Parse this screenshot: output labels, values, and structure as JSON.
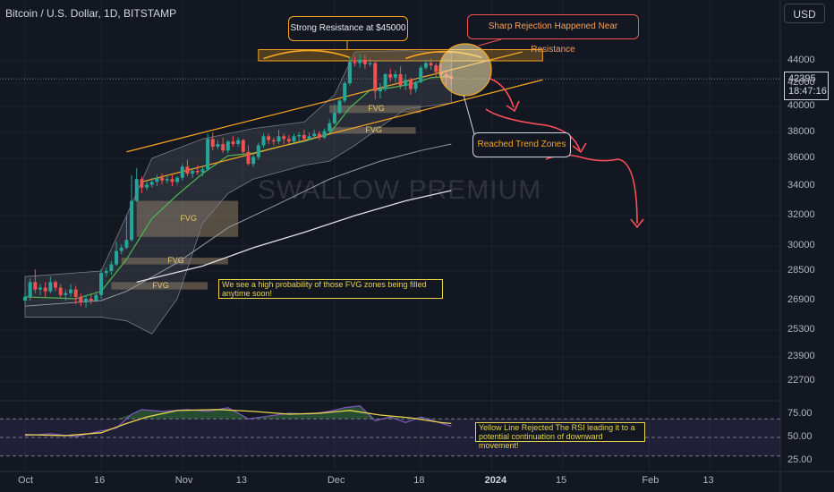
{
  "header": {
    "title": "Bitcoin / U.S. Dollar, 1D, BITSTAMP"
  },
  "currency_button": "USD",
  "price_tag": {
    "price": "42395",
    "countdown": "18:47:16"
  },
  "watermark": "SWALLOW PREMIUM",
  "annotations": {
    "resistance": "Strong Resistance at $45000",
    "rejection": "Sharp Rejection Happened Near Resistance",
    "trend_zones": "Reached Trend Zones",
    "fvg_fill": "We see a high probability of those FVG zones being filled anytime soon!",
    "rsi_note": "Yellow Line Rejected The RSI leading it to a potential continuation of downward movement!"
  },
  "fvg_labels": [
    "FVG",
    "FVG",
    "FVG",
    "FVG",
    "FVG"
  ],
  "colors": {
    "background": "#131722",
    "bull": "#26a69a",
    "bear": "#ef5350",
    "ema": "#4caf50",
    "ema_long": "#e0e0e0",
    "channel": "#f5a623",
    "fvg": "#c8a878",
    "rsi": "#7e57c2",
    "rsi_ma": "#e8d44d",
    "arrow": "#ff4f5a"
  },
  "chart_data": {
    "type": "candlestick",
    "price_axis": {
      "ticks": [
        "44000",
        "42000",
        "40000",
        "38000",
        "36000",
        "34000",
        "32000",
        "30000",
        "28500",
        "26900",
        "25300",
        "23900",
        "22700"
      ]
    },
    "rsi_axis": {
      "ticks": [
        "75.00",
        "50.00",
        "25.00"
      ]
    },
    "x_axis": {
      "ticks": [
        "Oct",
        "16",
        "Nov",
        "13",
        "Dec",
        "18",
        "2024",
        "15",
        "Feb",
        "13"
      ]
    },
    "x_tick_days": [
      0,
      15,
      31,
      43,
      61,
      78,
      92,
      106,
      123,
      135
    ],
    "candles": [
      {
        "d": 0,
        "o": 26900,
        "h": 27400,
        "c": 27100,
        "l": 26700
      },
      {
        "d": 1,
        "o": 27100,
        "h": 28100,
        "c": 27900,
        "l": 26900
      },
      {
        "d": 2,
        "o": 27900,
        "h": 28600,
        "c": 27500,
        "l": 27300
      },
      {
        "d": 3,
        "o": 27500,
        "h": 27800,
        "c": 27600,
        "l": 27200
      },
      {
        "d": 4,
        "o": 27600,
        "h": 27900,
        "c": 27400,
        "l": 27100
      },
      {
        "d": 5,
        "o": 27400,
        "h": 28200,
        "c": 27900,
        "l": 27300
      },
      {
        "d": 6,
        "o": 27900,
        "h": 28000,
        "c": 27600,
        "l": 27400
      },
      {
        "d": 7,
        "o": 27600,
        "h": 27800,
        "c": 27200,
        "l": 27000
      },
      {
        "d": 8,
        "o": 27200,
        "h": 27500,
        "c": 27300,
        "l": 26900
      },
      {
        "d": 9,
        "o": 27300,
        "h": 27800,
        "c": 27500,
        "l": 27100
      },
      {
        "d": 10,
        "o": 27500,
        "h": 27700,
        "c": 27100,
        "l": 26700
      },
      {
        "d": 11,
        "o": 27100,
        "h": 27300,
        "c": 26800,
        "l": 26600
      },
      {
        "d": 12,
        "o": 26800,
        "h": 27200,
        "c": 27000,
        "l": 26500
      },
      {
        "d": 13,
        "o": 27000,
        "h": 27300,
        "c": 26900,
        "l": 26700
      },
      {
        "d": 14,
        "o": 26900,
        "h": 27400,
        "c": 27200,
        "l": 26800
      },
      {
        "d": 15,
        "o": 27200,
        "h": 28600,
        "c": 28400,
        "l": 27000
      },
      {
        "d": 16,
        "o": 28400,
        "h": 28700,
        "c": 28500,
        "l": 28200
      },
      {
        "d": 17,
        "o": 28500,
        "h": 29100,
        "c": 28900,
        "l": 28300
      },
      {
        "d": 18,
        "o": 28900,
        "h": 30300,
        "c": 29700,
        "l": 28800
      },
      {
        "d": 19,
        "o": 29700,
        "h": 30100,
        "c": 29900,
        "l": 29500
      },
      {
        "d": 20,
        "o": 29900,
        "h": 32000,
        "c": 30400,
        "l": 29800
      },
      {
        "d": 21,
        "o": 30400,
        "h": 34800,
        "c": 33000,
        "l": 30300
      },
      {
        "d": 22,
        "o": 33000,
        "h": 35300,
        "c": 34500,
        "l": 32900
      },
      {
        "d": 23,
        "o": 34500,
        "h": 34700,
        "c": 33900,
        "l": 33500
      },
      {
        "d": 24,
        "o": 33900,
        "h": 34400,
        "c": 34100,
        "l": 33700
      },
      {
        "d": 25,
        "o": 34100,
        "h": 34600,
        "c": 34300,
        "l": 33900
      },
      {
        "d": 26,
        "o": 34300,
        "h": 34800,
        "c": 34600,
        "l": 34000
      },
      {
        "d": 27,
        "o": 34600,
        "h": 34900,
        "c": 34400,
        "l": 34100
      },
      {
        "d": 28,
        "o": 34400,
        "h": 34700,
        "c": 34500,
        "l": 34200
      },
      {
        "d": 29,
        "o": 34500,
        "h": 34800,
        "c": 34300,
        "l": 34000
      },
      {
        "d": 30,
        "o": 34300,
        "h": 34700,
        "c": 34600,
        "l": 34100
      },
      {
        "d": 31,
        "o": 34600,
        "h": 35600,
        "c": 35400,
        "l": 34400
      },
      {
        "d": 32,
        "o": 35400,
        "h": 35900,
        "c": 34900,
        "l": 34700
      },
      {
        "d": 33,
        "o": 34900,
        "h": 35300,
        "c": 35100,
        "l": 34600
      },
      {
        "d": 34,
        "o": 35100,
        "h": 35500,
        "c": 35000,
        "l": 34800
      },
      {
        "d": 35,
        "o": 35000,
        "h": 35400,
        "c": 35200,
        "l": 34700
      },
      {
        "d": 36,
        "o": 35200,
        "h": 37900,
        "c": 37500,
        "l": 35100
      },
      {
        "d": 37,
        "o": 37500,
        "h": 38000,
        "c": 36900,
        "l": 36600
      },
      {
        "d": 38,
        "o": 36900,
        "h": 37400,
        "c": 37100,
        "l": 36700
      },
      {
        "d": 39,
        "o": 37100,
        "h": 37600,
        "c": 36600,
        "l": 36400
      },
      {
        "d": 40,
        "o": 36600,
        "h": 37400,
        "c": 37300,
        "l": 36400
      },
      {
        "d": 41,
        "o": 37300,
        "h": 37700,
        "c": 37100,
        "l": 36900
      },
      {
        "d": 42,
        "o": 37100,
        "h": 37600,
        "c": 37400,
        "l": 36900
      },
      {
        "d": 43,
        "o": 37400,
        "h": 37500,
        "c": 36500,
        "l": 36300
      },
      {
        "d": 44,
        "o": 36500,
        "h": 37000,
        "c": 35600,
        "l": 35500
      },
      {
        "d": 45,
        "o": 35600,
        "h": 36300,
        "c": 36100,
        "l": 35400
      },
      {
        "d": 46,
        "o": 36100,
        "h": 37200,
        "c": 37000,
        "l": 35900
      },
      {
        "d": 47,
        "o": 37000,
        "h": 37900,
        "c": 37700,
        "l": 36800
      },
      {
        "d": 48,
        "o": 37700,
        "h": 37900,
        "c": 37400,
        "l": 37100
      },
      {
        "d": 49,
        "o": 37400,
        "h": 37600,
        "c": 37300,
        "l": 37000
      },
      {
        "d": 50,
        "o": 37300,
        "h": 38200,
        "c": 37700,
        "l": 37100
      },
      {
        "d": 51,
        "o": 37700,
        "h": 37900,
        "c": 37500,
        "l": 37100
      },
      {
        "d": 52,
        "o": 37500,
        "h": 37800,
        "c": 37300,
        "l": 37100
      },
      {
        "d": 53,
        "o": 37300,
        "h": 37900,
        "c": 37700,
        "l": 37200
      },
      {
        "d": 54,
        "o": 37700,
        "h": 38000,
        "c": 37800,
        "l": 37300
      },
      {
        "d": 55,
        "o": 37800,
        "h": 38200,
        "c": 37500,
        "l": 37300
      },
      {
        "d": 56,
        "o": 37500,
        "h": 38000,
        "c": 37700,
        "l": 37400
      },
      {
        "d": 57,
        "o": 37700,
        "h": 38200,
        "c": 37900,
        "l": 37500
      },
      {
        "d": 58,
        "o": 37900,
        "h": 38100,
        "c": 37600,
        "l": 37400
      },
      {
        "d": 59,
        "o": 37600,
        "h": 38300,
        "c": 38100,
        "l": 37500
      },
      {
        "d": 60,
        "o": 38100,
        "h": 39000,
        "c": 38700,
        "l": 37900
      },
      {
        "d": 61,
        "o": 38700,
        "h": 40200,
        "c": 39500,
        "l": 38600
      },
      {
        "d": 62,
        "o": 39500,
        "h": 40800,
        "c": 40500,
        "l": 39400
      },
      {
        "d": 63,
        "o": 40500,
        "h": 42200,
        "c": 42000,
        "l": 40300
      },
      {
        "d": 64,
        "o": 42000,
        "h": 44300,
        "c": 43900,
        "l": 41800
      },
      {
        "d": 65,
        "o": 43900,
        "h": 44400,
        "c": 43800,
        "l": 43500
      },
      {
        "d": 66,
        "o": 43800,
        "h": 44600,
        "c": 44100,
        "l": 43400
      },
      {
        "d": 67,
        "o": 44100,
        "h": 44500,
        "c": 43700,
        "l": 43300
      },
      {
        "d": 68,
        "o": 43700,
        "h": 44200,
        "c": 43800,
        "l": 43500
      },
      {
        "d": 69,
        "o": 43800,
        "h": 44000,
        "c": 41300,
        "l": 40600
      },
      {
        "d": 70,
        "o": 41300,
        "h": 42000,
        "c": 41500,
        "l": 40700
      },
      {
        "d": 71,
        "o": 41500,
        "h": 42900,
        "c": 42800,
        "l": 41300
      },
      {
        "d": 72,
        "o": 42800,
        "h": 43300,
        "c": 42500,
        "l": 42100
      },
      {
        "d": 73,
        "o": 42500,
        "h": 43100,
        "c": 42800,
        "l": 42100
      },
      {
        "d": 74,
        "o": 42800,
        "h": 43500,
        "c": 41800,
        "l": 41500
      },
      {
        "d": 75,
        "o": 41800,
        "h": 42800,
        "c": 42300,
        "l": 41400
      },
      {
        "d": 76,
        "o": 42300,
        "h": 42500,
        "c": 41500,
        "l": 41000
      },
      {
        "d": 77,
        "o": 41500,
        "h": 42200,
        "c": 42100,
        "l": 41200
      },
      {
        "d": 78,
        "o": 42100,
        "h": 43600,
        "c": 43400,
        "l": 42000
      },
      {
        "d": 79,
        "o": 43400,
        "h": 44100,
        "c": 43800,
        "l": 43200
      },
      {
        "d": 80,
        "o": 43800,
        "h": 44200,
        "c": 43600,
        "l": 43200
      },
      {
        "d": 81,
        "o": 43600,
        "h": 43800,
        "c": 43000,
        "l": 42500
      },
      {
        "d": 82,
        "o": 43000,
        "h": 43700,
        "c": 42800,
        "l": 42300
      },
      {
        "d": 83,
        "o": 42800,
        "h": 43200,
        "c": 42600,
        "l": 41800
      },
      {
        "d": 84,
        "o": 42600,
        "h": 43000,
        "c": 42400,
        "l": 42000
      }
    ],
    "ema_short": [
      [
        0,
        27100
      ],
      [
        10,
        27000
      ],
      [
        15,
        27400
      ],
      [
        20,
        29200
      ],
      [
        25,
        31800
      ],
      [
        30,
        33400
      ],
      [
        35,
        34900
      ],
      [
        40,
        36200
      ],
      [
        45,
        36400
      ],
      [
        50,
        36900
      ],
      [
        55,
        37300
      ],
      [
        60,
        37900
      ],
      [
        64,
        39900
      ],
      [
        68,
        41400
      ],
      [
        72,
        41600
      ],
      [
        76,
        41900
      ],
      [
        80,
        42500
      ],
      [
        84,
        42600
      ]
    ],
    "ema_long": [
      [
        0,
        26600
      ],
      [
        15,
        26900
      ],
      [
        20,
        27400
      ],
      [
        30,
        29000
      ],
      [
        40,
        31200
      ],
      [
        50,
        32800
      ],
      [
        60,
        34500
      ],
      [
        70,
        35800
      ],
      [
        78,
        36600
      ],
      [
        84,
        37100
      ]
    ],
    "ema_200": [
      [
        22,
        27900
      ],
      [
        35,
        28800
      ],
      [
        45,
        29900
      ],
      [
        55,
        30900
      ],
      [
        65,
        32000
      ],
      [
        75,
        33000
      ],
      [
        84,
        33700
      ]
    ],
    "bb_upper": [
      [
        0,
        28200
      ],
      [
        15,
        28500
      ],
      [
        20,
        32000
      ],
      [
        25,
        36000
      ],
      [
        35,
        37500
      ],
      [
        45,
        38300
      ],
      [
        55,
        38800
      ],
      [
        61,
        41000
      ],
      [
        65,
        44800
      ],
      [
        75,
        44900
      ],
      [
        84,
        44700
      ]
    ],
    "bb_lower": [
      [
        0,
        26000
      ],
      [
        15,
        26000
      ],
      [
        20,
        25800
      ],
      [
        25,
        25100
      ],
      [
        30,
        27000
      ],
      [
        35,
        31500
      ],
      [
        40,
        33500
      ],
      [
        45,
        34500
      ],
      [
        55,
        35500
      ],
      [
        60,
        35800
      ],
      [
        65,
        37000
      ],
      [
        75,
        39800
      ],
      [
        84,
        40300
      ]
    ],
    "channel_upper": [
      [
        20,
        36500
      ],
      [
        98,
        44800
      ]
    ],
    "channel_lower": [
      [
        23,
        34300
      ],
      [
        102,
        42300
      ]
    ],
    "resistance_zone": {
      "d0": 46,
      "d1": 102,
      "top": 45000,
      "bottom": 44000
    },
    "fvg_zones": [
      {
        "d0": 22,
        "d1": 42,
        "top": 33000,
        "bottom": 30600,
        "label": "FVG"
      },
      {
        "d0": 19,
        "d1": 40,
        "top": 29300,
        "bottom": 28900,
        "label": "FVG"
      },
      {
        "d0": 17,
        "d1": 36,
        "top": 27900,
        "bottom": 27500,
        "label": "FVG"
      },
      {
        "d0": 60,
        "d1": 78,
        "top": 40100,
        "bottom": 39500,
        "label": "FVG"
      },
      {
        "d0": 60,
        "d1": 77,
        "top": 38400,
        "bottom": 37900,
        "label": "FVG"
      }
    ],
    "rsi": [
      [
        0,
        52
      ],
      [
        5,
        54
      ],
      [
        10,
        51
      ],
      [
        15,
        57
      ],
      [
        18,
        60
      ],
      [
        21,
        75
      ],
      [
        23,
        80
      ],
      [
        27,
        78
      ],
      [
        32,
        80
      ],
      [
        36,
        78
      ],
      [
        40,
        82
      ],
      [
        44,
        70
      ],
      [
        48,
        73
      ],
      [
        52,
        76
      ],
      [
        56,
        75
      ],
      [
        60,
        78
      ],
      [
        63,
        82
      ],
      [
        66,
        84
      ],
      [
        69,
        68
      ],
      [
        72,
        72
      ],
      [
        75,
        66
      ],
      [
        78,
        72
      ],
      [
        81,
        67
      ],
      [
        84,
        62
      ]
    ],
    "rsi_ma": [
      [
        0,
        53
      ],
      [
        8,
        52
      ],
      [
        15,
        55
      ],
      [
        20,
        65
      ],
      [
        24,
        72
      ],
      [
        30,
        79
      ],
      [
        38,
        80
      ],
      [
        45,
        78
      ],
      [
        52,
        75
      ],
      [
        58,
        76
      ],
      [
        64,
        79
      ],
      [
        70,
        74
      ],
      [
        76,
        71
      ],
      [
        82,
        66
      ],
      [
        84,
        65
      ]
    ],
    "rsi_levels": [
      70,
      50,
      30
    ]
  }
}
